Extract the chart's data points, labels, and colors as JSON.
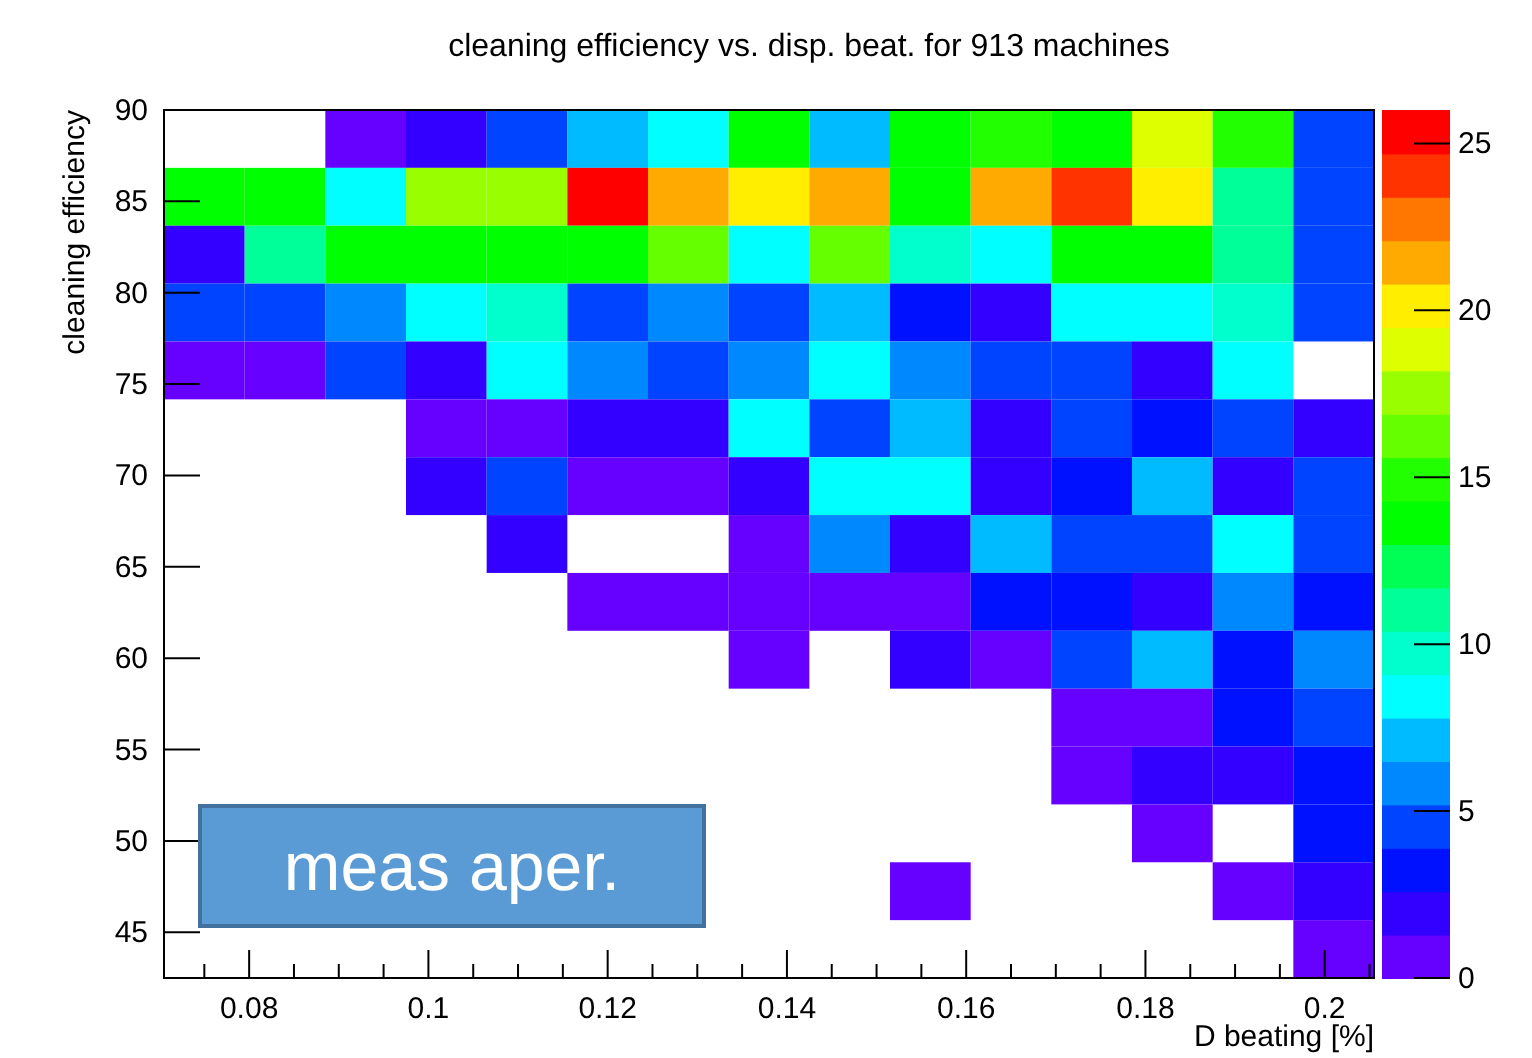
{
  "chart_data": {
    "type": "heatmap",
    "title": "cleaning efficiency vs. disp. beat. for 913 machines",
    "xlabel": "D beating [%]",
    "ylabel": "cleaning efficiency",
    "xlim": [
      0.0705,
      0.2055
    ],
    "ylim": [
      42.5,
      90
    ],
    "xticks": [
      {
        "value": 0.075,
        "label": null
      },
      0.08,
      {
        "value": 0.085,
        "label": null
      },
      {
        "value": 0.09,
        "label": null
      },
      {
        "value": 0.095,
        "label": null
      },
      0.1,
      {
        "value": 0.105,
        "label": null
      },
      {
        "value": 0.11,
        "label": null
      },
      {
        "value": 0.115,
        "label": null
      },
      0.12,
      {
        "value": 0.125,
        "label": null
      },
      {
        "value": 0.13,
        "label": null
      },
      {
        "value": 0.135,
        "label": null
      },
      0.14,
      {
        "value": 0.145,
        "label": null
      },
      {
        "value": 0.15,
        "label": null
      },
      {
        "value": 0.155,
        "label": null
      },
      0.16,
      {
        "value": 0.165,
        "label": null
      },
      {
        "value": 0.17,
        "label": null
      },
      {
        "value": 0.175,
        "label": null
      },
      0.18,
      {
        "value": 0.185,
        "label": null
      },
      {
        "value": 0.19,
        "label": null
      },
      {
        "value": 0.195,
        "label": null
      },
      0.2,
      {
        "value": 0.205,
        "label": null
      }
    ],
    "yticks": [
      45,
      50,
      55,
      60,
      65,
      70,
      75,
      80,
      85,
      90
    ],
    "clim": [
      0,
      26
    ],
    "cticks": [
      0,
      5,
      10,
      15,
      20,
      25
    ],
    "colors": [
      "#6600ff",
      "#3300ff",
      "#0011ff",
      "#0044ff",
      "#0088ff",
      "#00bbff",
      "#00ffff",
      "#00ffcc",
      "#00ff99",
      "#00ff55",
      "#00ff00",
      "#22ff00",
      "#66ff00",
      "#99ff00",
      "#ddff00",
      "#ffee00",
      "#ffaa00",
      "#ff7700",
      "#ff3300",
      "#ff0000"
    ],
    "cells": [
      [
        null,
        null,
        1,
        2,
        4,
        7,
        8,
        14,
        7,
        14,
        15,
        14,
        19,
        15,
        4
      ],
      [
        14,
        14,
        8,
        17,
        17,
        25,
        21,
        20,
        21,
        14,
        21,
        24,
        20,
        11,
        4
      ],
      [
        2,
        11,
        14,
        14,
        14,
        14,
        16,
        8,
        16,
        10,
        8,
        14,
        14,
        11,
        4
      ],
      [
        4,
        4,
        6,
        8,
        10,
        4,
        6,
        4,
        7,
        3,
        2,
        8,
        8,
        10,
        4
      ],
      [
        1,
        1,
        4,
        2,
        8,
        6,
        4,
        6,
        8,
        6,
        4,
        4,
        2,
        8,
        null
      ],
      [
        null,
        null,
        null,
        1,
        1,
        2,
        2,
        8,
        4,
        7,
        2,
        4,
        3,
        4,
        2
      ],
      [
        null,
        null,
        null,
        2,
        4,
        1,
        1,
        2,
        8,
        8,
        2,
        3,
        7,
        2,
        4
      ],
      [
        null,
        null,
        null,
        null,
        2,
        null,
        null,
        1,
        6,
        2,
        7,
        4,
        4,
        8,
        4
      ],
      [
        null,
        null,
        null,
        null,
        null,
        1,
        1,
        1,
        1,
        1,
        3,
        3,
        2,
        6,
        3
      ],
      [
        null,
        null,
        null,
        null,
        null,
        null,
        null,
        1,
        null,
        2,
        1,
        4,
        7,
        3,
        6
      ],
      [
        null,
        null,
        null,
        null,
        null,
        null,
        null,
        null,
        null,
        null,
        null,
        1,
        1,
        3,
        4
      ],
      [
        null,
        null,
        null,
        null,
        null,
        null,
        null,
        null,
        null,
        null,
        null,
        1,
        2,
        2,
        3
      ],
      [
        null,
        null,
        null,
        null,
        null,
        null,
        null,
        null,
        null,
        null,
        null,
        null,
        1,
        null,
        3
      ],
      [
        null,
        null,
        null,
        null,
        null,
        null,
        null,
        null,
        null,
        1,
        null,
        null,
        null,
        1,
        2
      ],
      [
        null,
        null,
        null,
        null,
        null,
        null,
        null,
        null,
        null,
        null,
        null,
        null,
        null,
        null,
        1
      ]
    ],
    "annotations": [
      "meas aper."
    ]
  }
}
